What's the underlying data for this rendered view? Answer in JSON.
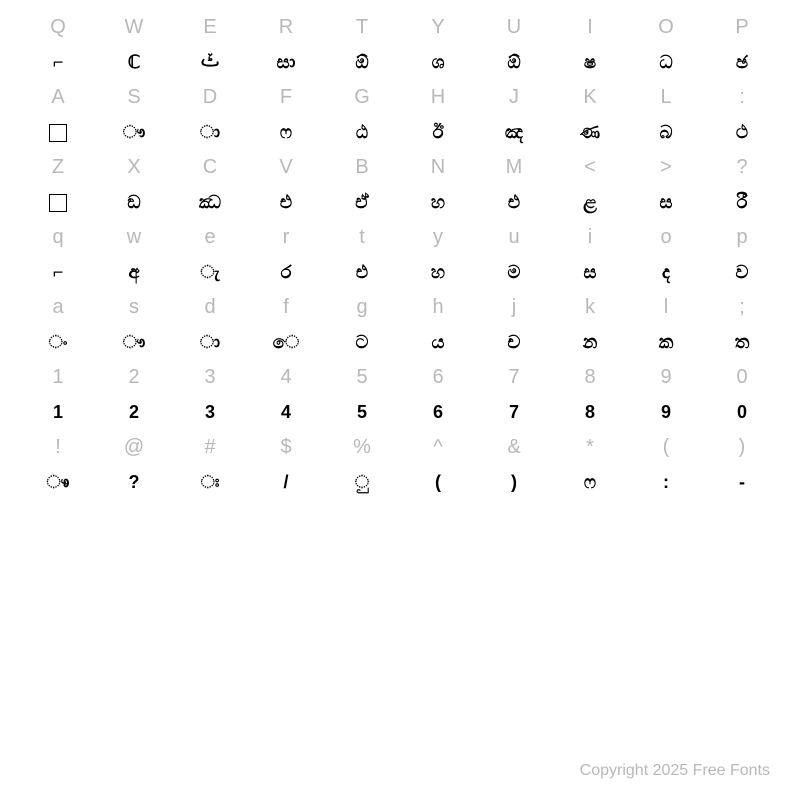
{
  "rows": [
    {
      "labels": [
        "Q",
        "W",
        "E",
        "R",
        "T",
        "Y",
        "U",
        "I",
        "O",
        "P"
      ],
      "glyphs": [
        "⌐",
        "ℂ",
        "ࣀ",
        "සා",
        "ඕ",
        "ශ",
        "ඕ",
        "ෂ",
        "ධ",
        "ඡ"
      ]
    },
    {
      "labels": [
        "A",
        "S",
        "D",
        "F",
        "G",
        "H",
        "J",
        "K",
        "L",
        ":"
      ],
      "glyphs": [
        "□",
        "ෟ",
        "ා",
        "ෆ",
        "ඨ",
        "ඊ",
        "ඤ",
        "ණ",
        "බ",
        "ථ"
      ]
    },
    {
      "labels": [
        "Z",
        "X",
        "C",
        "V",
        "B",
        "N",
        "M",
        "<",
        ">",
        "?"
      ],
      "glyphs": [
        "□",
        "ඞ",
        "ඣ",
        "එ",
        "ඒ",
        "හ",
        "එ",
        "ළ",
        "ස",
        "රී"
      ]
    },
    {
      "labels": [
        "q",
        "w",
        "e",
        "r",
        "t",
        "y",
        "u",
        "i",
        "o",
        "p"
      ],
      "glyphs": [
        "⌐",
        "අ",
        "ැ",
        "ර",
        "එ",
        "හ",
        "ම",
        "ස",
        "ද",
        "ව"
      ]
    },
    {
      "labels": [
        "a",
        "s",
        "d",
        "f",
        "g",
        "h",
        "j",
        "k",
        "l",
        ";"
      ],
      "glyphs": [
        "ං",
        "ෟ",
        "ා",
        "ෙ",
        "ට",
        "ය",
        "ච",
        "න",
        "ක",
        "ත"
      ]
    },
    {
      "labels": [
        "1",
        "2",
        "3",
        "4",
        "5",
        "6",
        "7",
        "8",
        "9",
        "0"
      ],
      "glyphs": [
        "1",
        "2",
        "3",
        "4",
        "5",
        "6",
        "7",
        "8",
        "9",
        "0"
      ]
    },
    {
      "labels": [
        "!",
        "@",
        "#",
        "$",
        "%",
        "^",
        "&",
        "*",
        "(",
        ")"
      ],
      "glyphs": [
        "ෳ",
        "?",
        "ඃ",
        "/",
        "ු",
        "(",
        ")",
        "ෆ",
        ":",
        "-"
      ]
    }
  ],
  "footer": "Copyright 2025 Free Fonts",
  "colors": {
    "label": "#b8b8b8",
    "glyph": "#000000",
    "background": "#ffffff"
  },
  "fontsize": {
    "label": 20,
    "glyph": 18,
    "footer": 16
  }
}
